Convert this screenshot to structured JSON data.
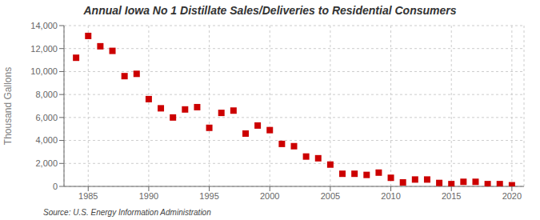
{
  "chart_data": {
    "type": "scatter",
    "title": "Annual Iowa No 1 Distillate Sales/Deliveries to Residential Consumers",
    "ylabel": "Thousand Gallons",
    "annotation": "Source: U.S. Energy Information Administration",
    "x": [
      1984,
      1985,
      1986,
      1987,
      1988,
      1989,
      1990,
      1991,
      1992,
      1993,
      1994,
      1995,
      1996,
      1997,
      1998,
      1999,
      2000,
      2001,
      2002,
      2003,
      2004,
      2005,
      2006,
      2007,
      2008,
      2009,
      2010,
      2011,
      2012,
      2013,
      2014,
      2015,
      2016,
      2017,
      2018,
      2019,
      2020
    ],
    "values": [
      11200,
      13100,
      12200,
      11800,
      9600,
      9800,
      7600,
      6800,
      6000,
      6700,
      6900,
      5100,
      6400,
      6600,
      4600,
      5300,
      4900,
      3700,
      3500,
      2600,
      2450,
      1900,
      1100,
      1100,
      1000,
      1200,
      750,
      350,
      600,
      600,
      300,
      200,
      400,
      400,
      200,
      200,
      100
    ],
    "color": "#cc0000",
    "marker": "square",
    "xlim": [
      1983,
      2021
    ],
    "ylim": [
      0,
      14000
    ],
    "xticks": [
      1985,
      1990,
      1995,
      2000,
      2005,
      2010,
      2015,
      2020
    ],
    "yticks": [
      0,
      {
        "value": 2000,
        "label": "2,000"
      },
      {
        "value": 4000,
        "label": "4,000"
      },
      {
        "value": 6000,
        "label": "6,000"
      },
      {
        "value": 8000,
        "label": "8,000"
      },
      {
        "value": 10000,
        "label": "10,000"
      },
      {
        "value": 12000,
        "label": "12,000"
      },
      {
        "value": 14000,
        "label": "14,000"
      }
    ],
    "grid": true
  }
}
